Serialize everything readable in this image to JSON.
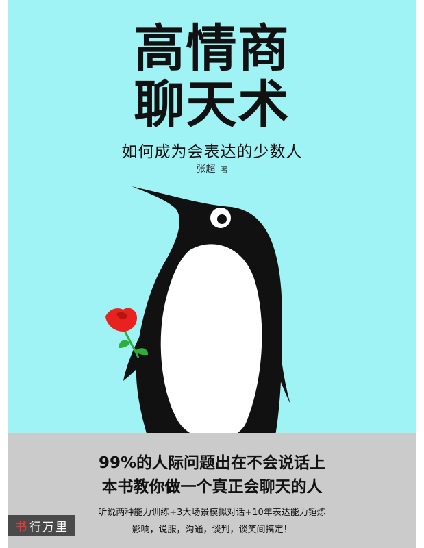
{
  "cover": {
    "title_line1": "高情商",
    "title_line2": "聊天术",
    "subtitle": "如何成为会表达的少数人",
    "author": "张超",
    "author_role": "著",
    "tagline_line1": "99%的人际问题出在不会说话上",
    "tagline_line2": "本书教你做一个真正会聊天的人",
    "blurb_line1": "听说两种能力训练+3大场景模拟对话+10年表达能力锤炼",
    "blurb_line2": "影响，说服，沟通，谈判，谈笑间搞定！"
  },
  "watermark": {
    "first_char": "书",
    "rest": "行万里"
  },
  "colors": {
    "background": "#9ff3f5",
    "band": "#cbcbcb",
    "penguin": "#111111",
    "rose": "#e8221f",
    "stem": "#2fae3a"
  }
}
